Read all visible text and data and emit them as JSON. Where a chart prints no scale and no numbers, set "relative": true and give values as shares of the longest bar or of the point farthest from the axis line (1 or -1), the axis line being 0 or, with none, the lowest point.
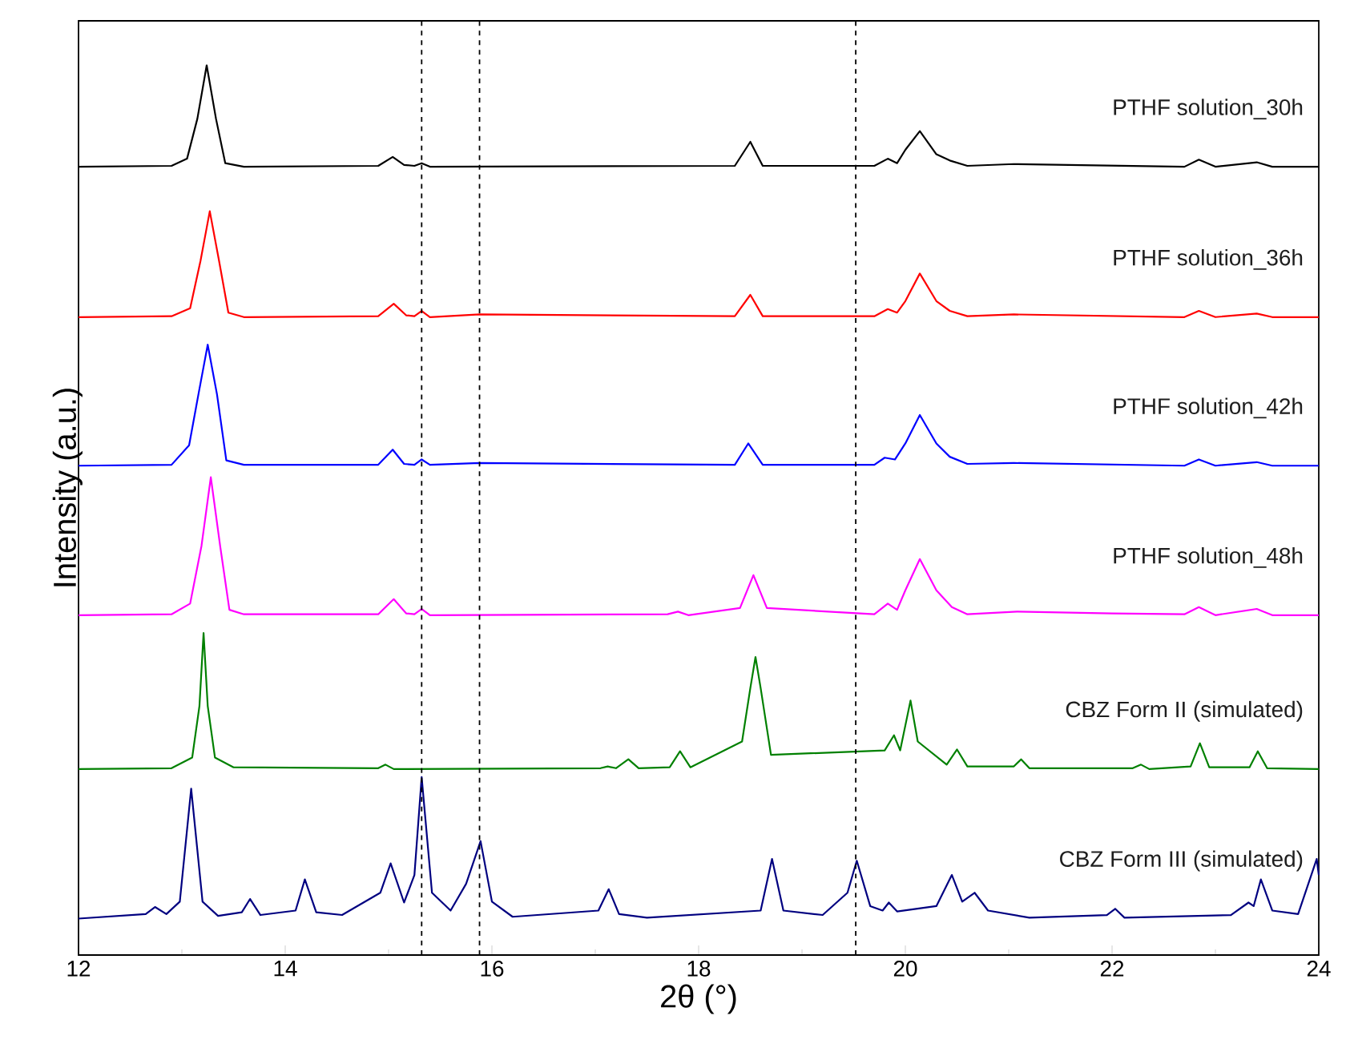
{
  "chart_data": {
    "type": "line",
    "relative": true,
    "xlabel": "2θ (°)",
    "ylabel": "Intensity (a.u.)",
    "xlim": [
      12,
      24
    ],
    "xticks": [
      12,
      14,
      16,
      18,
      20,
      22,
      24
    ],
    "grid": false,
    "marker": "none",
    "line_style": "solid",
    "series": [
      {
        "name": "PTHF solution_30h",
        "color": "#000000",
        "x": [
          12,
          12.9,
          13.05,
          13.15,
          13.24,
          13.33,
          13.42,
          13.6,
          14.9,
          15.04,
          15.15,
          15.25,
          15.32,
          15.4,
          18.35,
          18.5,
          18.62,
          19.7,
          19.83,
          19.92,
          20.0,
          20.14,
          20.3,
          20.43,
          20.6,
          21.05,
          22.7,
          22.84,
          23.0,
          23.4,
          23.55,
          24
        ],
        "values": [
          0.886,
          0.887,
          0.895,
          0.94,
          1.0,
          0.94,
          0.89,
          0.886,
          0.887,
          0.897,
          0.888,
          0.887,
          0.89,
          0.886,
          0.887,
          0.914,
          0.887,
          0.887,
          0.895,
          0.89,
          0.905,
          0.926,
          0.9,
          0.893,
          0.887,
          0.889,
          0.886,
          0.894,
          0.886,
          0.891,
          0.886,
          0.886
        ]
      },
      {
        "name": "PTHF solution_36h",
        "color": "#ff0000",
        "x": [
          12,
          12.9,
          13.08,
          13.18,
          13.27,
          13.36,
          13.45,
          13.6,
          14.9,
          15.05,
          15.17,
          15.25,
          15.32,
          15.4,
          15.88,
          18.35,
          18.5,
          18.62,
          19.7,
          19.83,
          19.92,
          20.0,
          20.14,
          20.3,
          20.43,
          20.6,
          21.05,
          22.7,
          22.84,
          23.0,
          23.4,
          23.55,
          24
        ],
        "values": [
          0.717,
          0.718,
          0.727,
          0.78,
          0.836,
          0.78,
          0.722,
          0.717,
          0.718,
          0.732,
          0.719,
          0.718,
          0.724,
          0.717,
          0.72,
          0.718,
          0.742,
          0.718,
          0.718,
          0.726,
          0.722,
          0.735,
          0.766,
          0.735,
          0.724,
          0.718,
          0.72,
          0.717,
          0.724,
          0.717,
          0.721,
          0.717,
          0.717
        ]
      },
      {
        "name": "PTHF solution_42h",
        "color": "#0000ff",
        "x": [
          12,
          12.9,
          13.07,
          13.16,
          13.25,
          13.34,
          13.43,
          13.6,
          14.9,
          15.04,
          15.15,
          15.25,
          15.32,
          15.4,
          15.88,
          18.35,
          18.48,
          18.62,
          19.7,
          19.8,
          19.9,
          20.0,
          20.14,
          20.3,
          20.43,
          20.6,
          21.05,
          22.7,
          22.84,
          23.0,
          23.4,
          23.55,
          24
        ],
        "values": [
          0.55,
          0.551,
          0.573,
          0.63,
          0.686,
          0.63,
          0.556,
          0.551,
          0.551,
          0.568,
          0.552,
          0.551,
          0.557,
          0.551,
          0.553,
          0.551,
          0.575,
          0.551,
          0.551,
          0.559,
          0.557,
          0.575,
          0.607,
          0.575,
          0.56,
          0.552,
          0.553,
          0.55,
          0.557,
          0.55,
          0.554,
          0.55,
          0.55
        ]
      },
      {
        "name": "PTHF solution_48h",
        "color": "#ff00ff",
        "x": [
          12,
          12.9,
          13.08,
          13.19,
          13.28,
          13.37,
          13.46,
          13.6,
          14.9,
          15.05,
          15.17,
          15.25,
          15.32,
          15.4,
          17.7,
          17.8,
          17.9,
          18.4,
          18.53,
          18.66,
          19.7,
          19.83,
          19.92,
          20.0,
          20.14,
          20.3,
          20.45,
          20.6,
          21.08,
          22.0,
          22.7,
          22.84,
          23.0,
          23.4,
          23.55,
          24
        ],
        "values": [
          0.382,
          0.383,
          0.395,
          0.46,
          0.537,
          0.46,
          0.388,
          0.383,
          0.383,
          0.4,
          0.384,
          0.383,
          0.389,
          0.382,
          0.383,
          0.386,
          0.382,
          0.39,
          0.427,
          0.39,
          0.383,
          0.395,
          0.388,
          0.41,
          0.445,
          0.41,
          0.391,
          0.383,
          0.386,
          0.384,
          0.383,
          0.391,
          0.382,
          0.389,
          0.382,
          0.382
        ]
      },
      {
        "name": "CBZ Form II (simulated)",
        "color": "#008000",
        "x": [
          12,
          12.9,
          13.1,
          13.17,
          13.21,
          13.25,
          13.32,
          13.5,
          14.9,
          14.97,
          15.05,
          17.05,
          17.12,
          17.2,
          17.32,
          17.42,
          17.72,
          17.82,
          17.92,
          18.42,
          18.5,
          18.55,
          18.6,
          18.7,
          19.8,
          19.89,
          19.95,
          20.05,
          20.12,
          20.4,
          20.5,
          20.6,
          21.05,
          21.12,
          21.2,
          22.2,
          22.28,
          22.36,
          22.76,
          22.85,
          22.94,
          23.33,
          23.41,
          23.5,
          24
        ],
        "values": [
          0.209,
          0.21,
          0.222,
          0.28,
          0.362,
          0.28,
          0.222,
          0.211,
          0.21,
          0.214,
          0.209,
          0.21,
          0.212,
          0.21,
          0.22,
          0.21,
          0.211,
          0.229,
          0.211,
          0.24,
          0.3,
          0.335,
          0.3,
          0.225,
          0.23,
          0.247,
          0.23,
          0.286,
          0.24,
          0.214,
          0.231,
          0.212,
          0.212,
          0.22,
          0.21,
          0.21,
          0.214,
          0.209,
          0.212,
          0.238,
          0.211,
          0.211,
          0.229,
          0.21,
          0.209
        ]
      },
      {
        "name": "CBZ Form III (simulated)",
        "color": "#000080",
        "x": [
          12,
          12.65,
          12.74,
          12.85,
          12.98,
          13.09,
          13.2,
          13.35,
          13.58,
          13.66,
          13.76,
          14.1,
          14.19,
          14.3,
          14.55,
          14.92,
          15.02,
          15.15,
          15.25,
          15.32,
          15.42,
          15.6,
          15.75,
          15.89,
          16.0,
          16.2,
          17.03,
          17.13,
          17.23,
          17.5,
          18.6,
          18.71,
          18.82,
          19.2,
          19.44,
          19.53,
          19.66,
          19.78,
          19.84,
          19.92,
          20.3,
          20.45,
          20.55,
          20.67,
          20.8,
          21.2,
          21.95,
          22.03,
          22.12,
          23.15,
          23.32,
          23.37,
          23.44,
          23.55,
          23.8,
          23.98,
          24
        ],
        "values": [
          0.041,
          0.046,
          0.054,
          0.046,
          0.06,
          0.187,
          0.06,
          0.044,
          0.048,
          0.063,
          0.045,
          0.05,
          0.085,
          0.048,
          0.045,
          0.07,
          0.103,
          0.059,
          0.09,
          0.2,
          0.07,
          0.05,
          0.08,
          0.128,
          0.06,
          0.043,
          0.05,
          0.074,
          0.046,
          0.042,
          0.05,
          0.108,
          0.05,
          0.045,
          0.07,
          0.106,
          0.055,
          0.05,
          0.059,
          0.049,
          0.055,
          0.09,
          0.06,
          0.07,
          0.05,
          0.042,
          0.045,
          0.052,
          0.042,
          0.045,
          0.059,
          0.055,
          0.085,
          0.05,
          0.046,
          0.108,
          0.09
        ]
      }
    ],
    "ref_lines": [
      {
        "axis": "x",
        "value": 15.32,
        "color": "#000000",
        "line_style": "dashed"
      },
      {
        "axis": "x",
        "value": 15.88,
        "color": "#000000",
        "line_style": "dashed"
      },
      {
        "axis": "x",
        "value": 19.52,
        "color": "#000000",
        "line_style": "dashed"
      }
    ]
  }
}
